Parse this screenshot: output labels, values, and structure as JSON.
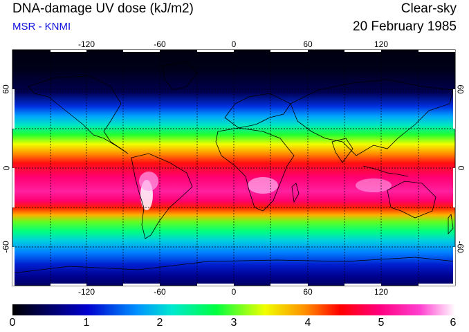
{
  "header": {
    "title": "DNA-damage UV dose (kJ/m2)",
    "source": "MSR - KNMI",
    "mode": "Clear-sky",
    "date": "20 February 1985"
  },
  "map": {
    "projection": "equirectangular",
    "lon_range": [
      -180,
      180
    ],
    "lat_range": [
      -90,
      90
    ],
    "lon_ticks": [
      "-120",
      "-60",
      "0",
      "60",
      "120"
    ],
    "lat_ticks": [
      "60",
      "0",
      "-60"
    ],
    "grid": "dashed 30°",
    "colors": {
      "ocean_dark": "#000030",
      "land_outline": "#000000"
    }
  },
  "colorbar": {
    "min": 0,
    "max": 6,
    "ticks": [
      "0",
      "1",
      "2",
      "3",
      "4",
      "5",
      "6"
    ],
    "stops": [
      "#000000",
      "#0000b0",
      "#0090ff",
      "#00e0e0",
      "#00ff40",
      "#f0ff00",
      "#ff9000",
      "#ff0000",
      "#ff0080",
      "#ff30c0",
      "#ffffff"
    ]
  }
}
